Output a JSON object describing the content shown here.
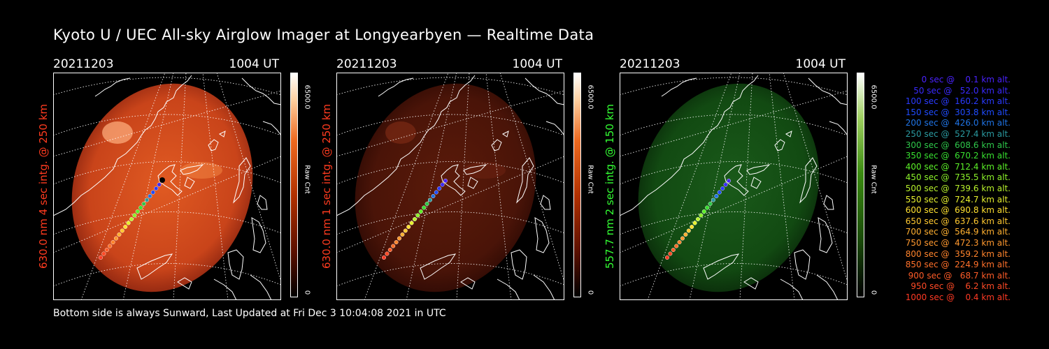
{
  "title": "Kyoto U / UEC All-sky Airglow Imager at Longyearbyen — Realtime Data",
  "footer": "Bottom side is always Sunward, Last Updated at Fri Dec  3 10:04:08 2021 in UTC",
  "panels": [
    {
      "date": "20211203",
      "time": "1004 UT",
      "label": "630.0 nm 4 sec intg. @ 250 km",
      "label_color": "#ff3b1f",
      "cbar_max": "6500.0",
      "cbar_min": "0",
      "cbar_unit": "Raw Cnt",
      "cmap": "red",
      "brightness": "bright"
    },
    {
      "date": "20211203",
      "time": "1004 UT",
      "label": "630.0 nm 1 sec intg. @ 250 km",
      "label_color": "#ff3b1f",
      "cbar_max": "6500.0",
      "cbar_min": "0",
      "cbar_unit": "Raw Cnt",
      "cmap": "red",
      "brightness": "dim"
    },
    {
      "date": "20211203",
      "time": "1004 UT",
      "label": "557.7 nm 2 sec intg. @ 150 km",
      "label_color": "#33ff33",
      "cbar_max": "6500.0",
      "cbar_min": "0",
      "cbar_unit": "Raw Cnt",
      "cmap": "green",
      "brightness": "dim"
    }
  ],
  "legend": [
    {
      "text": "   0 sec @    0.1 km alt.",
      "color": "#4a22ff"
    },
    {
      "text": "  50 sec @   52.0 km alt.",
      "color": "#3a2aff"
    },
    {
      "text": " 100 sec @  160.2 km alt.",
      "color": "#2a3aff"
    },
    {
      "text": " 150 sec @  303.8 km alt.",
      "color": "#1f4cff"
    },
    {
      "text": " 200 sec @  426.0 km alt.",
      "color": "#1f74e6"
    },
    {
      "text": " 250 sec @  527.4 km alt.",
      "color": "#2a9aa0"
    },
    {
      "text": " 300 sec @  608.6 km alt.",
      "color": "#2ec84a"
    },
    {
      "text": " 350 sec @  670.2 km alt.",
      "color": "#38e030"
    },
    {
      "text": " 400 sec @  712.4 km alt.",
      "color": "#5cf028"
    },
    {
      "text": " 450 sec @  735.5 km alt.",
      "color": "#8cf22a"
    },
    {
      "text": " 500 sec @  739.6 km alt.",
      "color": "#b8f22c"
    },
    {
      "text": " 550 sec @  724.7 km alt.",
      "color": "#e6f02e"
    },
    {
      "text": " 600 sec @  690.8 km alt.",
      "color": "#ffe030"
    },
    {
      "text": " 650 sec @  637.6 km alt.",
      "color": "#ffc830"
    },
    {
      "text": " 700 sec @  564.9 km alt.",
      "color": "#ffb030"
    },
    {
      "text": " 750 sec @  472.3 km alt.",
      "color": "#ff982e"
    },
    {
      "text": " 800 sec @  359.2 km alt.",
      "color": "#ff842c"
    },
    {
      "text": " 850 sec @  224.9 km alt.",
      "color": "#ff702a"
    },
    {
      "text": " 900 sec @   68.7 km alt.",
      "color": "#ff5c28"
    },
    {
      "text": " 950 sec @    6.2 km alt.",
      "color": "#ff4a26"
    },
    {
      "text": "1000 sec @    0.4 km alt.",
      "color": "#ff3a24"
    }
  ]
}
